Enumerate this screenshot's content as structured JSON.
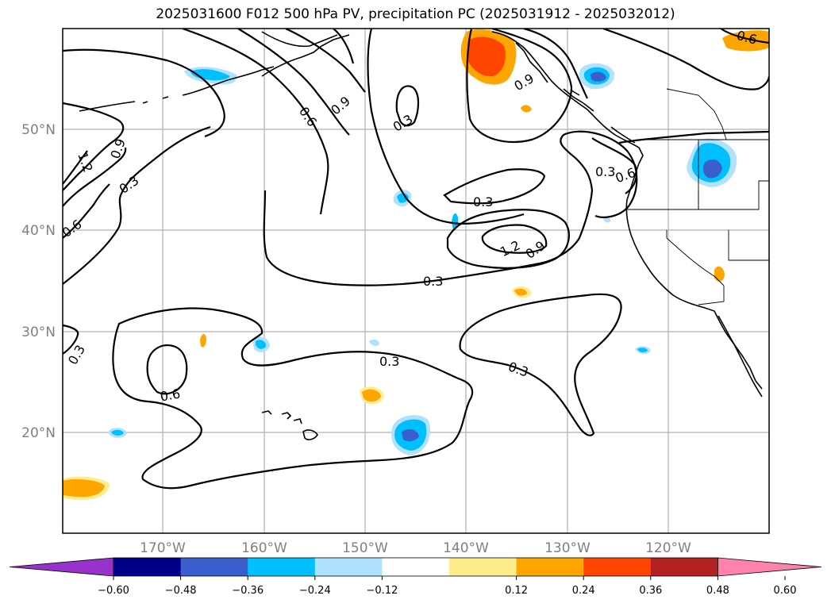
{
  "title": "2025031600 F012 500 hPa PV, precipitation PC (2025031912 - 2025032012)",
  "map": {
    "lat_ticks": [
      "50°N",
      "40°N",
      "30°N",
      "20°N"
    ],
    "lon_ticks": [
      "170°W",
      "160°W",
      "150°W",
      "140°W",
      "130°W",
      "120°W"
    ],
    "contour_labels": [
      "0.6",
      "1.2",
      "0.9",
      "0.3",
      "0.6",
      "0.9",
      "0.3",
      "0.3",
      "0.6",
      "0.9",
      "0.3",
      "1.2",
      "0.9",
      "0.3",
      "0.3",
      "0.3",
      "0.6",
      "0.3",
      "0.6"
    ]
  },
  "colorbar": {
    "colors": [
      "#9932cc",
      "#00008b",
      "#3a5fcd",
      "#00bfff",
      "#b0e2ff",
      "#ffffff",
      "#ffec8b",
      "#ffa500",
      "#ff4500",
      "#b22222",
      "#ff82ab"
    ],
    "labels": [
      "−0.60",
      "−0.48",
      "−0.36",
      "−0.24",
      "−0.12",
      "0.12",
      "0.24",
      "0.36",
      "0.48",
      "0.60"
    ]
  }
}
